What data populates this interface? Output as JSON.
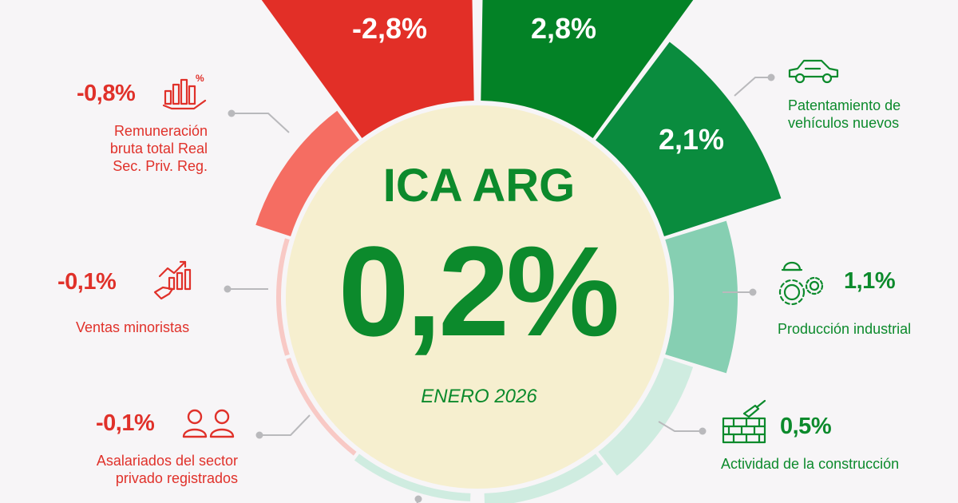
{
  "center": {
    "title": "ICA ARG",
    "value": "0,2%",
    "period": "ENERO 2026"
  },
  "chart_data": {
    "type": "polar-bar",
    "period": "ENERO 2026",
    "headline_value": 0.2,
    "series": [
      {
        "label": "Remuneración bruta total Real Sec. Priv. Reg.",
        "value": -0.8,
        "display": "-0,8%"
      },
      {
        "label": "Ventas minoristas",
        "value": -0.1,
        "display": "-0,1%"
      },
      {
        "label": "Asalariados del sector privado registrados",
        "value": -0.1,
        "display": "-0,1%"
      },
      {
        "label": "",
        "value": -2.8,
        "display": "-2,8%"
      },
      {
        "label": "",
        "value": 2.8,
        "display": "2,8%"
      },
      {
        "label": "Patentamiento de vehículos nuevos",
        "value": 2.1,
        "display": "2,1%"
      },
      {
        "label": "Producción industrial",
        "value": 1.1,
        "display": "1,1%"
      },
      {
        "label": "Actividad de la construcción",
        "value": 0.5,
        "display": "0,5%"
      }
    ]
  },
  "labels": {
    "top_left": {
      "value": "-2,8%"
    },
    "top_right": {
      "value": "2,8%"
    },
    "remuneracion": {
      "value": "-0,8%",
      "line1": "Remuneración",
      "line2": "bruta total Real",
      "line3": "Sec. Priv. Reg."
    },
    "ventas": {
      "value": "-0,1%",
      "line1": "Ventas minoristas"
    },
    "asalariados": {
      "value": "-0,1%",
      "line1": "Asalariados del sector",
      "line2": "privado registrados"
    },
    "patentamiento": {
      "value": "2,1%",
      "line1": "Patentamiento de",
      "line2": "vehículos nuevos"
    },
    "produccion": {
      "value": "1,1%",
      "line1": "Producción industrial"
    },
    "construccion": {
      "value": "0,5%",
      "line1": "Actividad de la construcción"
    }
  },
  "colors": {
    "red_strong": "#e22f27",
    "red_light": "#f56d62",
    "red_pale": "#f8c9c5",
    "green_strong": "#038226",
    "green_mid": "#0a8c3e",
    "green_light": "#86cfb2",
    "green_pale": "#cfece0",
    "center_fill": "#f6efcf",
    "center_text": "#0c8a2c"
  },
  "icons": [
    "money-chart-icon",
    "trend-hand-icon",
    "people-icon",
    "car-icon",
    "gear-helmet-icon",
    "brick-trowel-icon"
  ]
}
